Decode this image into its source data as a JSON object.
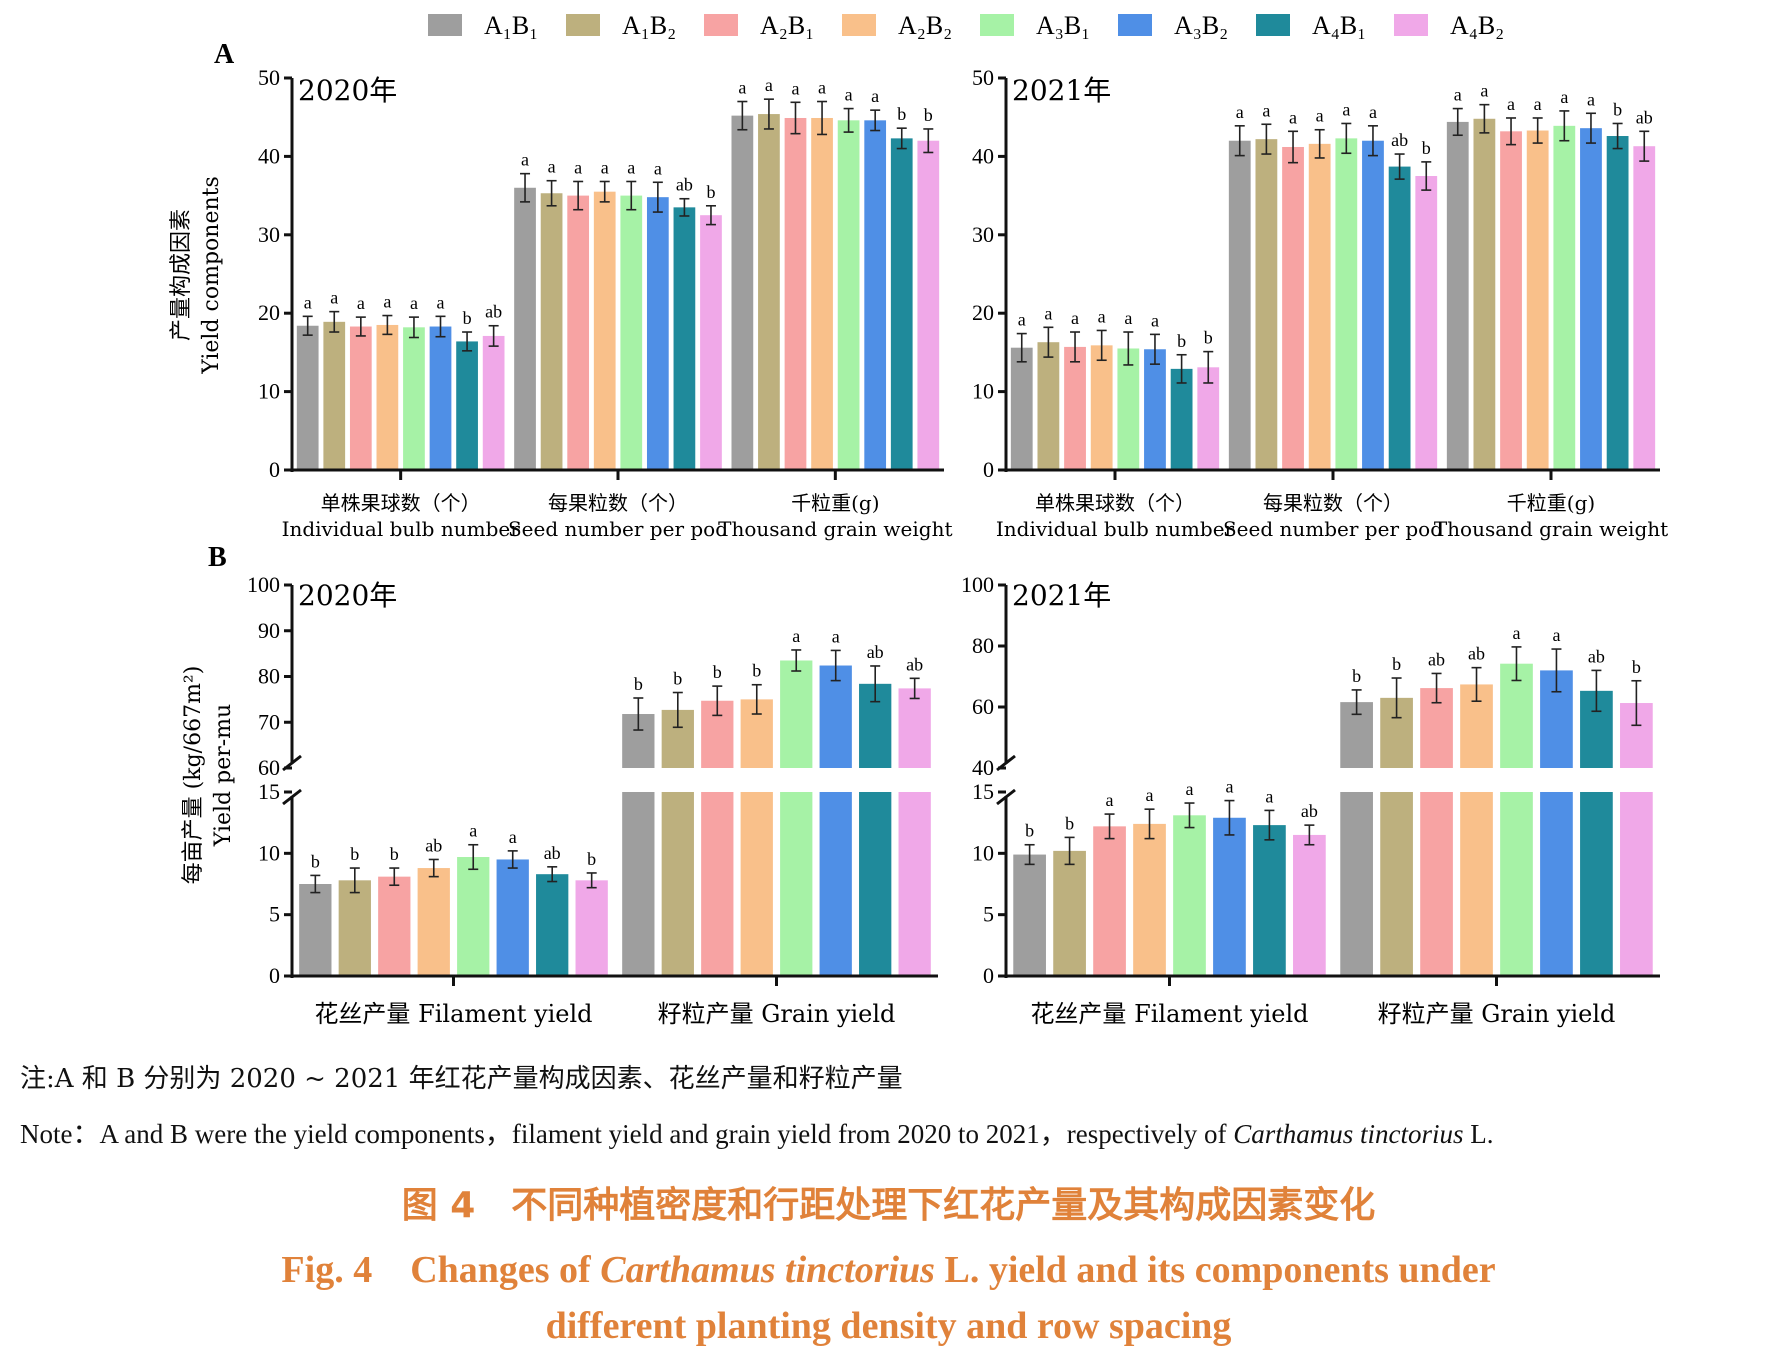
{
  "legend": [
    {
      "label": "A₁B₁",
      "color": "#9e9e9e"
    },
    {
      "label": "A₁B₂",
      "color": "#bdb07e"
    },
    {
      "label": "A₂B₁",
      "color": "#f7a3a3"
    },
    {
      "label": "A₂B₂",
      "color": "#f9c08a"
    },
    {
      "label": "A₃B₁",
      "color": "#a6f2a6"
    },
    {
      "label": "A₃B₂",
      "color": "#4f8fe6"
    },
    {
      "label": "A₄B₁",
      "color": "#1f8a9b"
    },
    {
      "label": "A₄B₂",
      "color": "#f0a8e8"
    }
  ],
  "panel_letters": {
    "A": "A",
    "B": "B"
  },
  "years": {
    "y2020": "2020年",
    "y2021": "2021年"
  },
  "axis_labels": {
    "A_cn": "产量构成因素",
    "A_en": "Yield components",
    "B_cn": "每亩产量 (kg/667m²)",
    "B_en": "Yield per-mu"
  },
  "categories_A": [
    {
      "cn": "单株果球数（个）",
      "en": "Individual bulb number"
    },
    {
      "cn": "每果粒数（个）",
      "en": "Seed number per pod"
    },
    {
      "cn": "千粒重(g)",
      "en": "Thousand grain weight"
    }
  ],
  "categories_B": [
    {
      "label": "花丝产量 Filament yield"
    },
    {
      "label": "籽粒产量 Grain yield"
    }
  ],
  "chart_data": [
    {
      "type": "bar",
      "panel": "A",
      "title": "2020年",
      "ylabel": "产量构成因素 Yield components",
      "ylim": [
        0,
        50
      ],
      "yticks": [
        0,
        10,
        20,
        30,
        40,
        50
      ],
      "categories": [
        "单株果球数（个） Individual bulb number",
        "每果粒数（个） Seed number per pod",
        "千粒重(g) Thousand grain weight"
      ],
      "series": [
        {
          "name": "A₁B₁",
          "values": [
            18.4,
            36.0,
            45.2
          ],
          "errors": [
            1.2,
            1.8,
            1.8
          ],
          "letters": [
            "a",
            "a",
            "a"
          ]
        },
        {
          "name": "A₁B₂",
          "values": [
            18.9,
            35.3,
            45.4
          ],
          "errors": [
            1.3,
            1.6,
            1.9
          ],
          "letters": [
            "a",
            "a",
            "a"
          ]
        },
        {
          "name": "A₂B₁",
          "values": [
            18.3,
            35.0,
            44.9
          ],
          "errors": [
            1.2,
            1.8,
            2.0
          ],
          "letters": [
            "a",
            "a",
            "a"
          ]
        },
        {
          "name": "A₂B₂",
          "values": [
            18.5,
            35.5,
            44.9
          ],
          "errors": [
            1.2,
            1.3,
            2.1
          ],
          "letters": [
            "a",
            "a",
            "a"
          ]
        },
        {
          "name": "A₃B₁",
          "values": [
            18.2,
            35.0,
            44.6
          ],
          "errors": [
            1.3,
            1.8,
            1.5
          ],
          "letters": [
            "a",
            "a",
            "a"
          ]
        },
        {
          "name": "A₃B₂",
          "values": [
            18.3,
            34.8,
            44.6
          ],
          "errors": [
            1.3,
            1.9,
            1.3
          ],
          "letters": [
            "a",
            "a",
            "a"
          ]
        },
        {
          "name": "A₄B₁",
          "values": [
            16.4,
            33.5,
            42.3
          ],
          "errors": [
            1.2,
            1.1,
            1.3
          ],
          "letters": [
            "b",
            "ab",
            "b"
          ]
        },
        {
          "name": "A₄B₂",
          "values": [
            17.1,
            32.5,
            42.0
          ],
          "errors": [
            1.3,
            1.2,
            1.5
          ],
          "letters": [
            "ab",
            "b",
            "b"
          ]
        }
      ]
    },
    {
      "type": "bar",
      "panel": "A",
      "title": "2021年",
      "ylim": [
        0,
        50
      ],
      "yticks": [
        0,
        10,
        20,
        30,
        40,
        50
      ],
      "categories": [
        "单株果球数（个） Individual bulb number",
        "每果粒数（个） Seed number per pod",
        "千粒重(g) Thousand grain weight"
      ],
      "series": [
        {
          "name": "A₁B₁",
          "values": [
            15.6,
            42.0,
            44.4
          ],
          "errors": [
            1.8,
            1.9,
            1.7
          ],
          "letters": [
            "a",
            "a",
            "a"
          ]
        },
        {
          "name": "A₁B₂",
          "values": [
            16.3,
            42.2,
            44.8
          ],
          "errors": [
            1.9,
            1.9,
            1.8
          ],
          "letters": [
            "a",
            "a",
            "a"
          ]
        },
        {
          "name": "A₂B₁",
          "values": [
            15.7,
            41.2,
            43.2
          ],
          "errors": [
            1.9,
            2.0,
            1.7
          ],
          "letters": [
            "a",
            "a",
            "a"
          ]
        },
        {
          "name": "A₂B₂",
          "values": [
            15.9,
            41.6,
            43.3
          ],
          "errors": [
            1.9,
            1.8,
            1.6
          ],
          "letters": [
            "a",
            "a",
            "a"
          ]
        },
        {
          "name": "A₃B₁",
          "values": [
            15.5,
            42.3,
            43.9
          ],
          "errors": [
            2.1,
            1.9,
            1.9
          ],
          "letters": [
            "a",
            "a",
            "a"
          ]
        },
        {
          "name": "A₃B₂",
          "values": [
            15.4,
            42.0,
            43.6
          ],
          "errors": [
            1.9,
            1.9,
            1.9
          ],
          "letters": [
            "a",
            "a",
            "a"
          ]
        },
        {
          "name": "A₄B₁",
          "values": [
            12.9,
            38.7,
            42.6
          ],
          "errors": [
            1.8,
            1.6,
            1.6
          ],
          "letters": [
            "b",
            "ab",
            "b"
          ]
        },
        {
          "name": "A₄B₂",
          "values": [
            13.1,
            37.5,
            41.3
          ],
          "errors": [
            2.0,
            1.8,
            1.9
          ],
          "letters": [
            "b",
            "b",
            "ab"
          ]
        }
      ]
    },
    {
      "type": "bar",
      "panel": "B",
      "title": "2020年",
      "ylabel": "每亩产量 (kg/667m²) Yield per-mu",
      "broken_axis": {
        "lower": [
          0,
          15
        ],
        "upper": [
          60,
          100
        ]
      },
      "yticks_lower": [
        0,
        5,
        10,
        15
      ],
      "yticks_upper": [
        60,
        70,
        80,
        90,
        100
      ],
      "categories": [
        "花丝产量 Filament yield",
        "籽粒产量 Grain yield"
      ],
      "series": [
        {
          "name": "A₁B₁",
          "values": [
            7.5,
            71.8
          ],
          "errors": [
            0.7,
            3.5
          ],
          "letters": [
            "b",
            "b"
          ]
        },
        {
          "name": "A₁B₂",
          "values": [
            7.8,
            72.7
          ],
          "errors": [
            1.0,
            3.8
          ],
          "letters": [
            "b",
            "b"
          ]
        },
        {
          "name": "A₂B₁",
          "values": [
            8.1,
            74.7
          ],
          "errors": [
            0.7,
            3.2
          ],
          "letters": [
            "b",
            "b"
          ]
        },
        {
          "name": "A₂B₂",
          "values": [
            8.8,
            75.0
          ],
          "errors": [
            0.7,
            3.2
          ],
          "letters": [
            "ab",
            "b"
          ]
        },
        {
          "name": "A₃B₁",
          "values": [
            9.7,
            83.5
          ],
          "errors": [
            1.0,
            2.3
          ],
          "letters": [
            "a",
            "a"
          ]
        },
        {
          "name": "A₃B₂",
          "values": [
            9.5,
            82.4
          ],
          "errors": [
            0.7,
            3.3
          ],
          "letters": [
            "a",
            "a"
          ]
        },
        {
          "name": "A₄B₁",
          "values": [
            8.3,
            78.4
          ],
          "errors": [
            0.6,
            3.9
          ],
          "letters": [
            "ab",
            "ab"
          ]
        },
        {
          "name": "A₄B₂",
          "values": [
            7.8,
            77.4
          ],
          "errors": [
            0.6,
            2.2
          ],
          "letters": [
            "b",
            "ab"
          ]
        }
      ]
    },
    {
      "type": "bar",
      "panel": "B",
      "title": "2021年",
      "broken_axis": {
        "lower": [
          0,
          15
        ],
        "upper": [
          40,
          100
        ]
      },
      "yticks_lower": [
        0,
        5,
        10,
        15
      ],
      "yticks_upper": [
        40,
        60,
        80,
        100
      ],
      "categories": [
        "花丝产量 Filament yield",
        "籽粒产量 Grain yield"
      ],
      "series": [
        {
          "name": "A₁B₁",
          "values": [
            9.9,
            61.6
          ],
          "errors": [
            0.8,
            4.0
          ],
          "letters": [
            "b",
            "b"
          ]
        },
        {
          "name": "A₁B₂",
          "values": [
            10.2,
            63.0
          ],
          "errors": [
            1.1,
            6.5
          ],
          "letters": [
            "b",
            "b"
          ]
        },
        {
          "name": "A₂B₁",
          "values": [
            12.2,
            66.2
          ],
          "errors": [
            1.0,
            4.8
          ],
          "letters": [
            "a",
            "ab"
          ]
        },
        {
          "name": "A₂B₂",
          "values": [
            12.4,
            67.4
          ],
          "errors": [
            1.2,
            5.5
          ],
          "letters": [
            "a",
            "ab"
          ]
        },
        {
          "name": "A₃B₁",
          "values": [
            13.1,
            74.2
          ],
          "errors": [
            1.0,
            5.5
          ],
          "letters": [
            "a",
            "a"
          ]
        },
        {
          "name": "A₃B₂",
          "values": [
            12.9,
            72.0
          ],
          "errors": [
            1.4,
            7.0
          ],
          "letters": [
            "a",
            "a"
          ]
        },
        {
          "name": "A₄B₁",
          "values": [
            12.3,
            65.3
          ],
          "errors": [
            1.2,
            6.7
          ],
          "letters": [
            "a",
            "ab"
          ]
        },
        {
          "name": "A₄B₂",
          "values": [
            11.5,
            61.3
          ],
          "errors": [
            0.8,
            7.3
          ],
          "letters": [
            "ab",
            "b"
          ]
        }
      ]
    }
  ],
  "note_cn": "注:A 和 B 分别为 2020 ~ 2021 年红花产量构成因素、花丝产量和籽粒产量",
  "note_en_pre": "Note：A and B were the yield components，filament yield and grain yield from 2020 to 2021，respectively of ",
  "note_en_species": "Carthamus tinctorius",
  "note_en_post": " L.",
  "caption_cn": "图 4　不同种植密度和行距处理下红花产量及其构成因素变化",
  "caption_en_pre": "Fig. 4　Changes of ",
  "caption_en_species": "Carthamus tinctorius",
  "caption_en_post": " L.  yield and its components under",
  "caption_en_line2": "different planting density and row spacing"
}
